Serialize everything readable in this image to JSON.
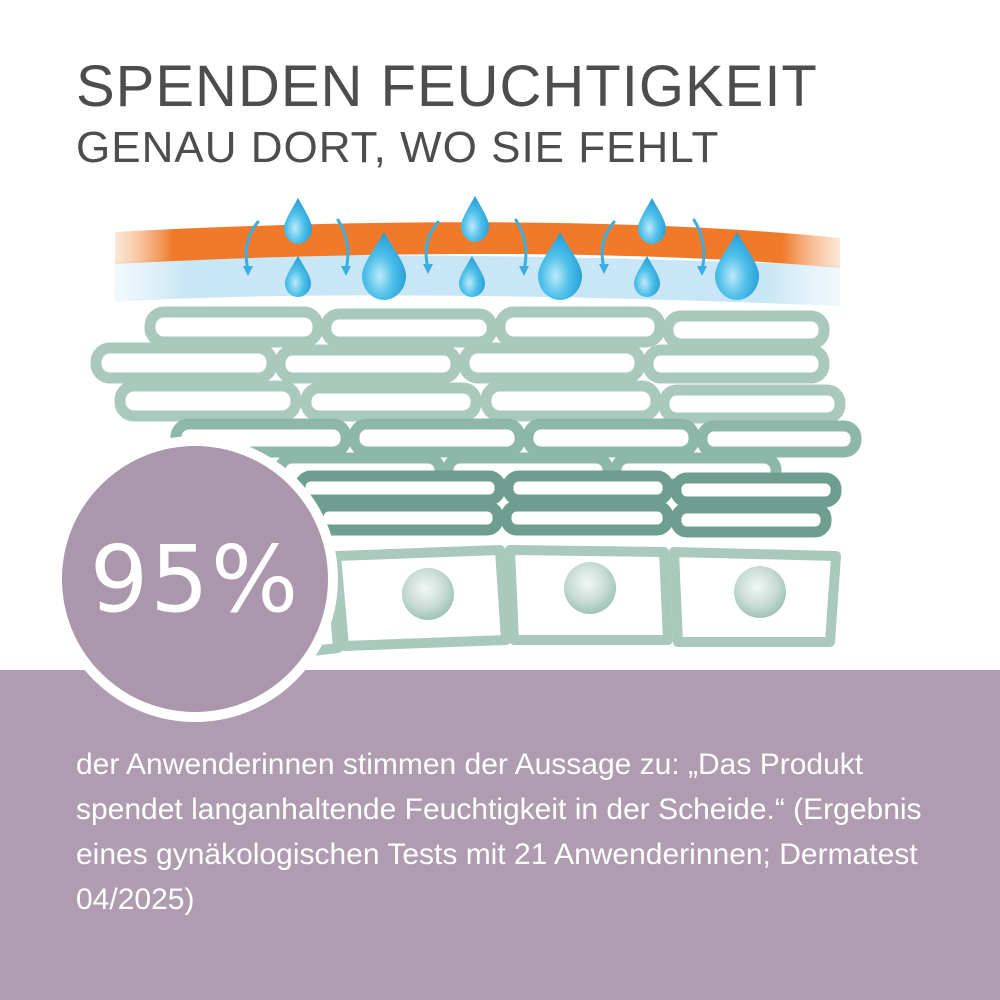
{
  "headline": {
    "line1": "SPENDEN FEUCHTIGKEIT",
    "line2": "GENAU DORT, WO SIE FEHLT"
  },
  "stat": {
    "value": "95%"
  },
  "statement": {
    "text": "der Anwenderinnen stimmen der Aussage zu: „Das Produkt spendet langanhaltende Feuchtigkeit in der Scheide.“ (Ergebnis eines gynäkologischen Tests mit 21 Anwenderinnen; Dermatest 04/2025)"
  },
  "colors": {
    "headline_text": "#4d4d4d",
    "band": "#b09cb0",
    "circle": "#ab97ab",
    "orange_layer": "#f07a2a",
    "water_layer": "#c8e6f5",
    "droplet": "#3bb0e0",
    "cells_light": "#a9c9bd",
    "cells_mid": "#8db7a9",
    "cells_dark": "#6e9e8f"
  },
  "icons": [
    "water-droplet-icon",
    "curved-arrow-icon"
  ]
}
